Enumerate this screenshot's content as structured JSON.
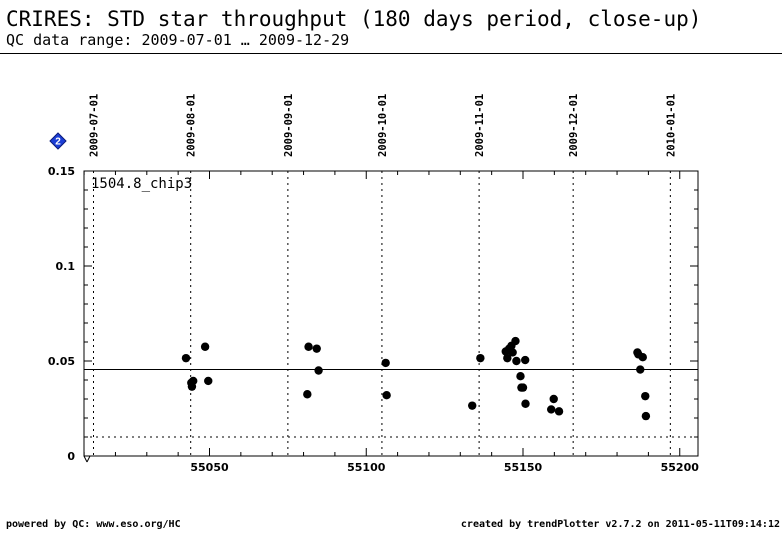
{
  "header": {
    "title": "CRIRES: STD star throughput (180 days period, close-up)",
    "subtitle": "QC data range: 2009-07-01 … 2009-12-29"
  },
  "footer": {
    "left": "powered by QC: www.eso.org/HC",
    "right": "created by trendPlotter v2.7.2 on 2011-05-11T09:14:12"
  },
  "legend_icon": "diamond-2-icon",
  "chart_data": {
    "type": "scatter",
    "panel_label": "1504.8_chip3",
    "xlim": [
      50990,
      55200
    ],
    "ylim": [
      0,
      0.15
    ],
    "x_axis_break": true,
    "x_ticks": [
      55050,
      55100,
      55150,
      55200
    ],
    "y_ticks": [
      {
        "value": 0,
        "label": "0"
      },
      {
        "value": 0.05,
        "label": "0.05"
      },
      {
        "value": 0.1,
        "label": "0.1"
      },
      {
        "value": 0.15,
        "label": "0.15"
      }
    ],
    "date_markers": [
      {
        "x": 55013,
        "label": "2009-07-01"
      },
      {
        "x": 55044,
        "label": "2009-08-01"
      },
      {
        "x": 55075,
        "label": "2009-09-01"
      },
      {
        "x": 55105,
        "label": "2009-10-01"
      },
      {
        "x": 55136,
        "label": "2009-11-01"
      },
      {
        "x": 55166,
        "label": "2009-12-01"
      },
      {
        "x": 55197,
        "label": "2010-01-01"
      }
    ],
    "reference_lines": [
      {
        "y": 0.0455,
        "style": "solid"
      },
      {
        "y": 0.01,
        "style": "dotted"
      }
    ],
    "grid": false,
    "points": [
      {
        "x": 55042.5,
        "y": 0.0515
      },
      {
        "x": 55044.2,
        "y": 0.0385
      },
      {
        "x": 55044.4,
        "y": 0.0365
      },
      {
        "x": 55044.8,
        "y": 0.0395
      },
      {
        "x": 55048.6,
        "y": 0.0575
      },
      {
        "x": 55049.6,
        "y": 0.0395
      },
      {
        "x": 55081.2,
        "y": 0.0325
      },
      {
        "x": 55081.6,
        "y": 0.0575
      },
      {
        "x": 55084.2,
        "y": 0.0565
      },
      {
        "x": 55084.8,
        "y": 0.045
      },
      {
        "x": 55106.2,
        "y": 0.049
      },
      {
        "x": 55106.5,
        "y": 0.032
      },
      {
        "x": 55133.8,
        "y": 0.0265
      },
      {
        "x": 55136.4,
        "y": 0.0515
      },
      {
        "x": 55144.5,
        "y": 0.055
      },
      {
        "x": 55145.0,
        "y": 0.0515
      },
      {
        "x": 55145.6,
        "y": 0.0565
      },
      {
        "x": 55146.3,
        "y": 0.058
      },
      {
        "x": 55146.7,
        "y": 0.0545
      },
      {
        "x": 55147.6,
        "y": 0.0605
      },
      {
        "x": 55147.9,
        "y": 0.05
      },
      {
        "x": 55149.2,
        "y": 0.042
      },
      {
        "x": 55149.5,
        "y": 0.036
      },
      {
        "x": 55150.0,
        "y": 0.036
      },
      {
        "x": 55150.7,
        "y": 0.0505
      },
      {
        "x": 55150.8,
        "y": 0.0275
      },
      {
        "x": 55159.0,
        "y": 0.0245
      },
      {
        "x": 55159.8,
        "y": 0.03
      },
      {
        "x": 55161.5,
        "y": 0.0235
      },
      {
        "x": 55186.5,
        "y": 0.0545
      },
      {
        "x": 55186.8,
        "y": 0.0535
      },
      {
        "x": 55187.4,
        "y": 0.0455
      },
      {
        "x": 55188.2,
        "y": 0.052
      },
      {
        "x": 55189.0,
        "y": 0.0315
      },
      {
        "x": 55189.2,
        "y": 0.021
      }
    ]
  }
}
